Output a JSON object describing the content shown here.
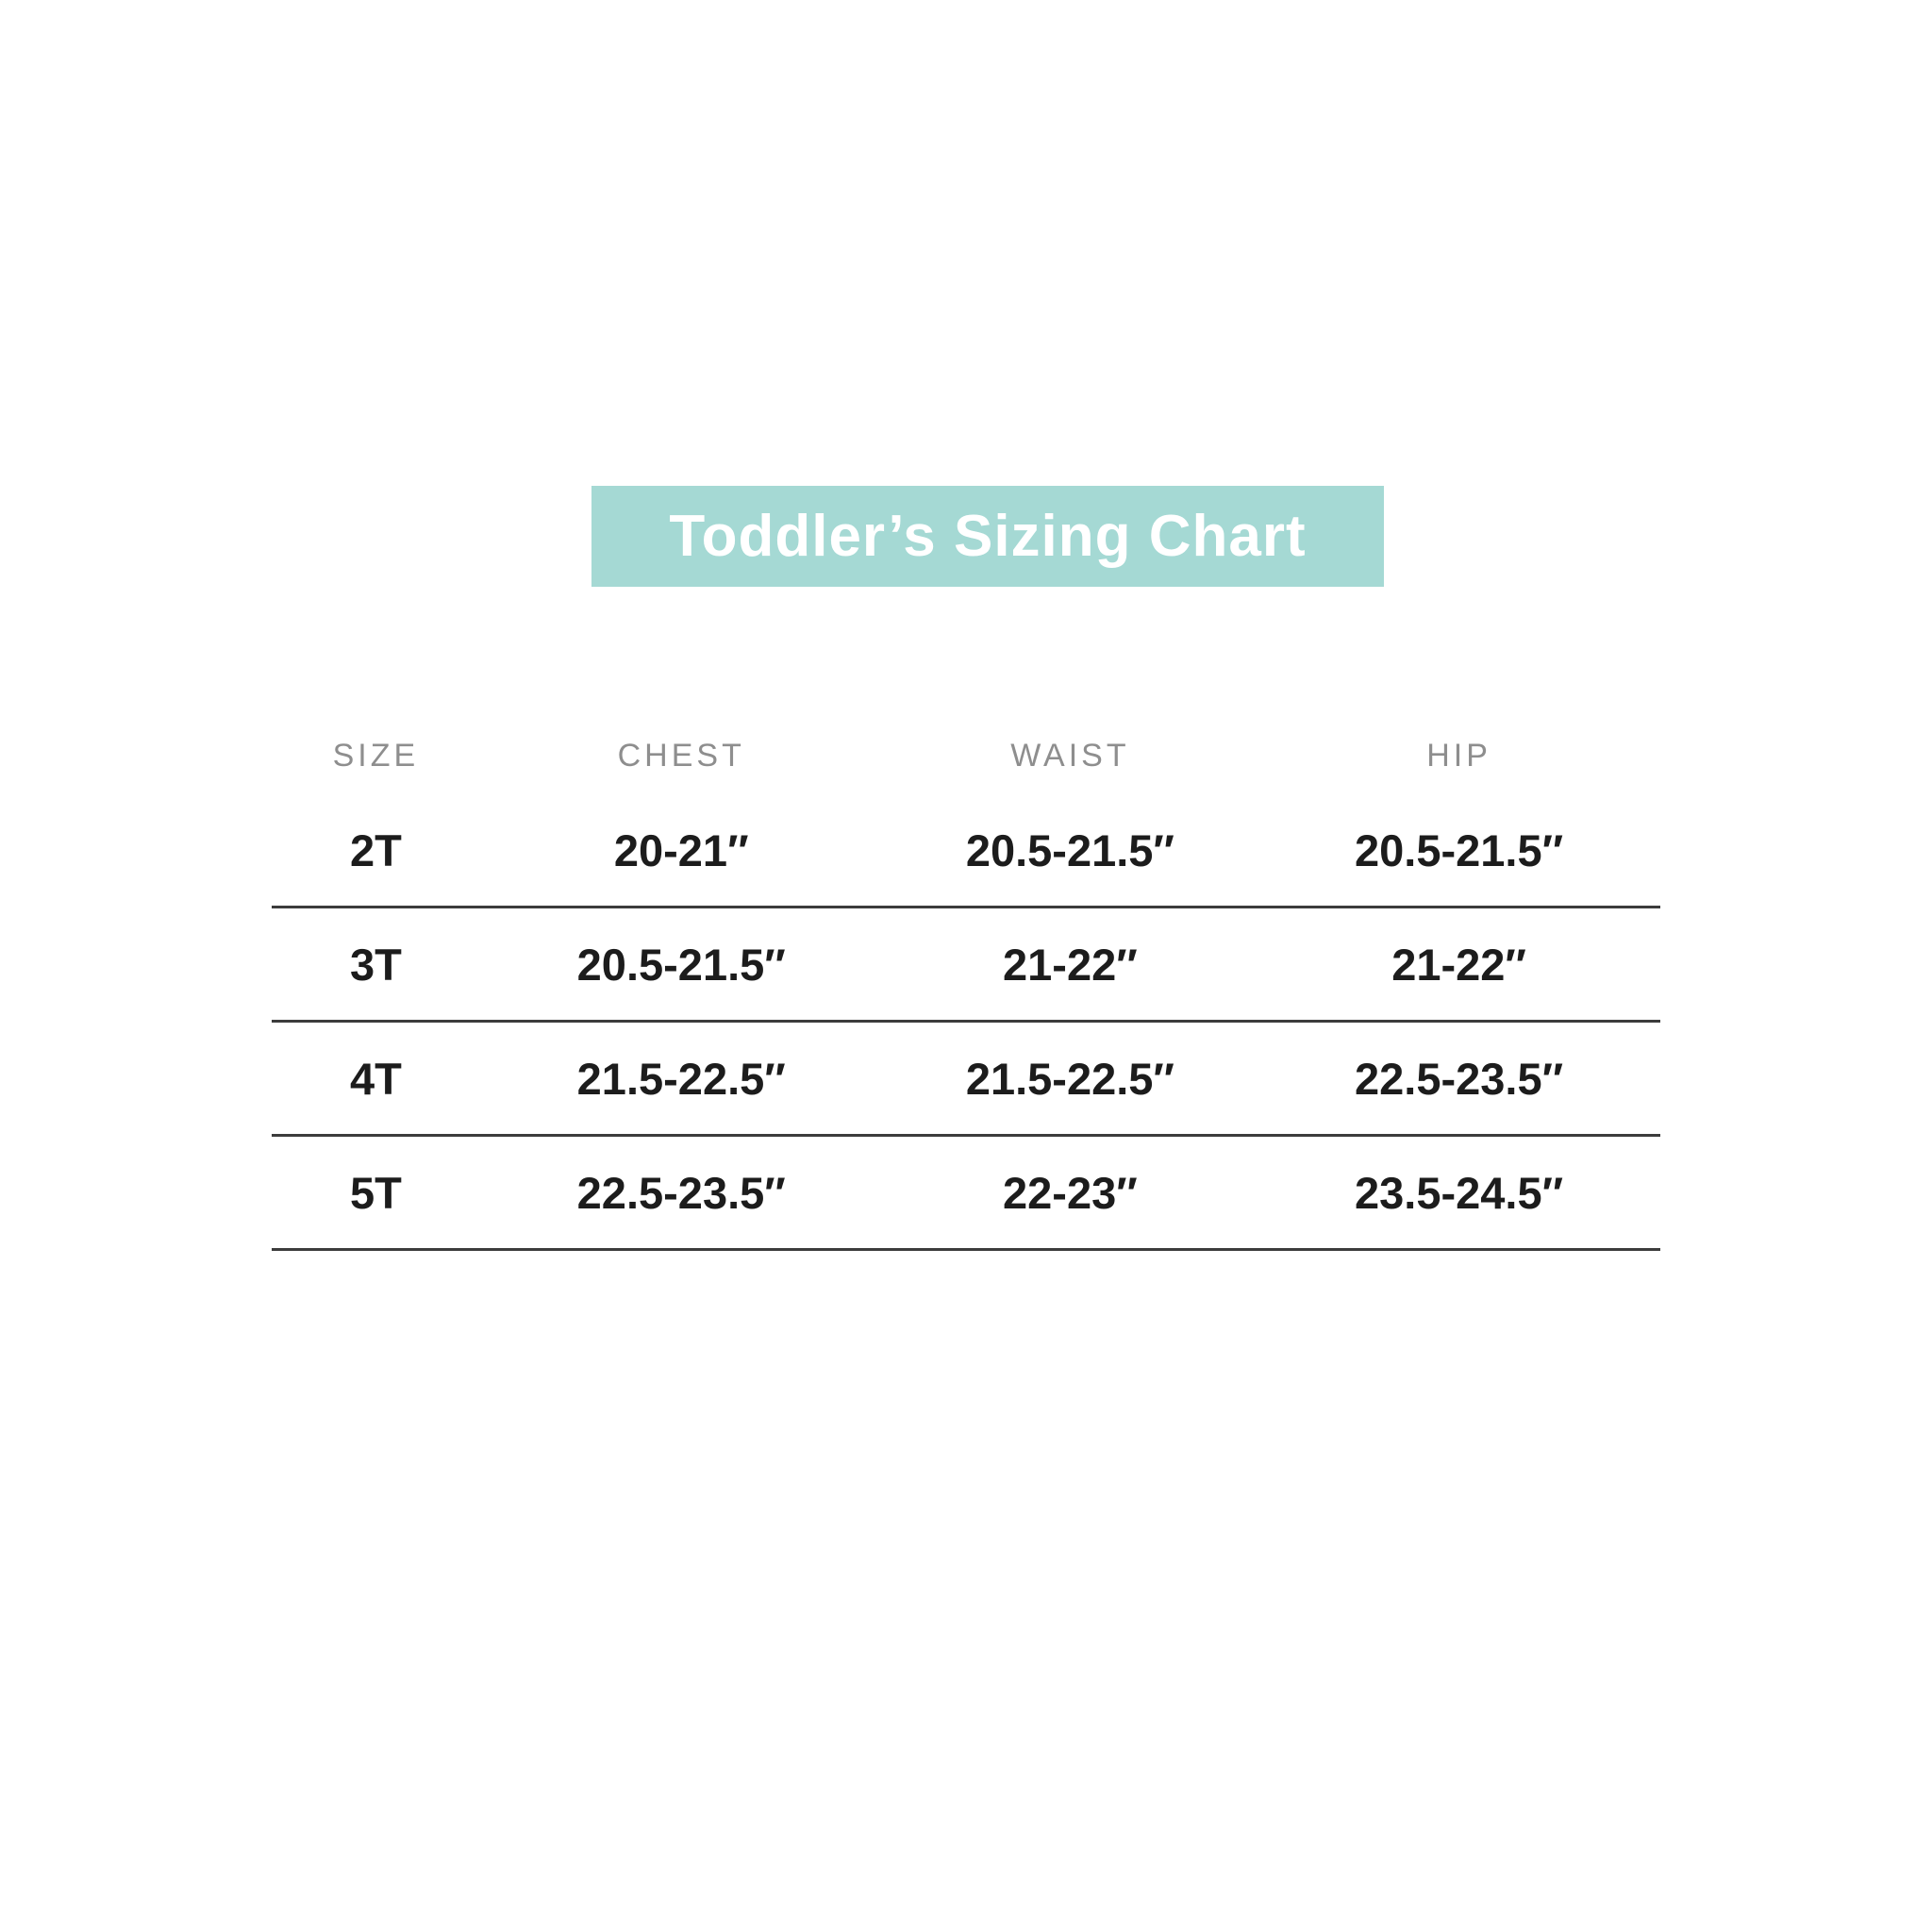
{
  "banner": {
    "title": "Toddler’s Sizing Chart",
    "background_color": "#a5d9d4",
    "text_color": "#ffffff"
  },
  "table": {
    "headers": [
      "SIZE",
      "CHEST",
      "WAIST",
      "HIP"
    ],
    "rows": [
      [
        "2T",
        "20-21″",
        "20.5-21.5″",
        "20.5-21.5″"
      ],
      [
        "3T",
        "20.5-21.5″",
        "21-22″",
        "21-22″"
      ],
      [
        "4T",
        "21.5-22.5″",
        "21.5-22.5″",
        "22.5-23.5″"
      ],
      [
        "5T",
        "22.5-23.5″",
        "22-23″",
        "23.5-24.5″"
      ]
    ]
  },
  "chart_data": {
    "type": "table",
    "title": "Toddler’s Sizing Chart",
    "columns": [
      "SIZE",
      "CHEST",
      "WAIST",
      "HIP"
    ],
    "rows": [
      [
        "2T",
        "20-21″",
        "20.5-21.5″",
        "20.5-21.5″"
      ],
      [
        "3T",
        "20.5-21.5″",
        "21-22″",
        "21-22″"
      ],
      [
        "4T",
        "21.5-22.5″",
        "21.5-22.5″",
        "22.5-23.5″"
      ],
      [
        "5T",
        "22.5-23.5″",
        "22-23″",
        "23.5-24.5″"
      ]
    ],
    "units": "inches"
  },
  "colors": {
    "page_bg": "#ffffff",
    "banner_bg": "#a5d9d4",
    "banner_text": "#ffffff",
    "header_text": "#8e8e8e",
    "cell_text": "#1c1c1c",
    "row_line": "#3c3c3c"
  }
}
